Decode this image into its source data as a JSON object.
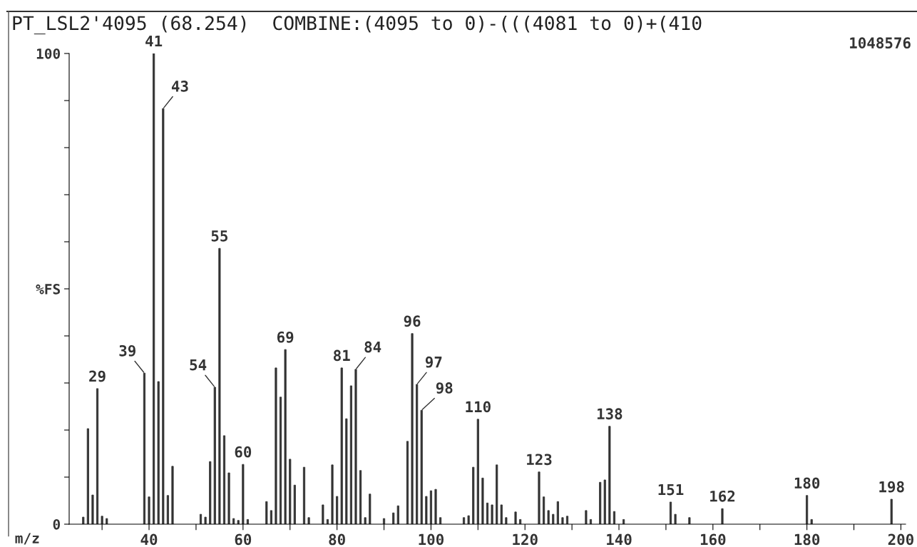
{
  "chart_data": {
    "type": "bar",
    "title": "PT_LSL2'4095 (68.254)  COMBINE:(4095 to 0)-(((4081 to 0)+(410",
    "xlabel": "m/z",
    "x": [
      26,
      27,
      28,
      29,
      30,
      31,
      39,
      40,
      41,
      42,
      43,
      44,
      45,
      51,
      52,
      53,
      54,
      55,
      56,
      57,
      58,
      59,
      60,
      61,
      65,
      66,
      67,
      68,
      69,
      70,
      71,
      73,
      74,
      77,
      78,
      79,
      80,
      81,
      82,
      83,
      84,
      85,
      86,
      87,
      90,
      92,
      93,
      95,
      96,
      97,
      98,
      99,
      100,
      101,
      102,
      107,
      108,
      109,
      110,
      111,
      112,
      113,
      114,
      115,
      116,
      118,
      119,
      123,
      124,
      125,
      126,
      127,
      128,
      129,
      133,
      134,
      136,
      137,
      138,
      139,
      141,
      151,
      152,
      155,
      162,
      180,
      181,
      198
    ],
    "values": [
      1.5,
      20.3,
      6.2,
      28.8,
      1.7,
      1.2,
      32.1,
      5.8,
      100,
      30.3,
      88.3,
      6.1,
      12.3,
      2.1,
      1.5,
      13.3,
      29.1,
      58.6,
      18.8,
      10.9,
      1.2,
      0.8,
      12.7,
      1,
      4.8,
      2.9,
      33.2,
      27.0,
      37.1,
      13.8,
      8.3,
      12.1,
      1.4,
      4.1,
      1,
      12.6,
      5.9,
      33.2,
      22.4,
      29.4,
      32.9,
      11.4,
      1.4,
      6.4,
      1.2,
      2.4,
      3.9,
      17.6,
      40.5,
      29.7,
      24.2,
      5.9,
      7.1,
      7.4,
      1.4,
      1.4,
      1.8,
      12.1,
      22.3,
      9.8,
      4.5,
      4.1,
      12.6,
      4.1,
      1.4,
      2.6,
      1,
      11.1,
      5.8,
      2.9,
      2.1,
      4.8,
      1.4,
      1.7,
      2.9,
      1,
      8.9,
      9.4,
      20.8,
      2.7,
      1,
      4.7,
      2.1,
      1.4,
      3.3,
      6.1,
      1,
      5.3
    ],
    "color": "#333333",
    "xlim": [
      23,
      201
    ],
    "ylim": [
      0,
      100
    ],
    "xticks": [
      {
        "value": 30,
        "label": null
      },
      40,
      {
        "value": 50,
        "label": null
      },
      60,
      {
        "value": 70,
        "label": null
      },
      80,
      {
        "value": 90,
        "label": null
      },
      100,
      {
        "value": 110,
        "label": null
      },
      120,
      {
        "value": 130,
        "label": null
      },
      140,
      {
        "value": 150,
        "label": null
      },
      160,
      {
        "value": 170,
        "label": null
      },
      180,
      {
        "value": 190,
        "label": null
      },
      200
    ],
    "yticks": [
      0,
      {
        "value": 10,
        "label": null
      },
      {
        "value": 20,
        "label": null
      },
      {
        "value": 30,
        "label": null
      },
      {
        "value": 40,
        "label": null
      },
      {
        "value": 50,
        "label": "%FS"
      },
      {
        "value": 60,
        "label": null
      },
      {
        "value": 70,
        "label": null
      },
      {
        "value": 80,
        "label": null
      },
      {
        "value": 90,
        "label": null
      },
      100
    ],
    "grid": false,
    "annotations": [
      "1048576",
      {
        "text": "29",
        "x": 29,
        "y": 28.8
      },
      {
        "text": "39",
        "x": 39,
        "y": 32.1
      },
      {
        "text": "41",
        "x": 41,
        "y": 100
      },
      {
        "text": "43",
        "x": 43,
        "y": 88.3
      },
      {
        "text": "54",
        "x": 54,
        "y": 29.1
      },
      {
        "text": "55",
        "x": 55,
        "y": 58.6
      },
      {
        "text": "60",
        "x": 60,
        "y": 12.7
      },
      {
        "text": "69",
        "x": 69,
        "y": 37.1
      },
      {
        "text": "81",
        "x": 81,
        "y": 33.2
      },
      {
        "text": "84",
        "x": 84,
        "y": 32.9
      },
      {
        "text": "96",
        "x": 96,
        "y": 40.5
      },
      {
        "text": "97",
        "x": 97,
        "y": 29.7
      },
      {
        "text": "98",
        "x": 98,
        "y": 24.2
      },
      {
        "text": "110",
        "x": 110,
        "y": 22.3
      },
      {
        "text": "123",
        "x": 123,
        "y": 11.1
      },
      {
        "text": "138",
        "x": 138,
        "y": 20.8
      },
      {
        "text": "151",
        "x": 151,
        "y": 4.7
      },
      {
        "text": "162",
        "x": 162,
        "y": 3.3
      },
      {
        "text": "180",
        "x": 180,
        "y": 6.1
      },
      {
        "text": "198",
        "x": 198,
        "y": 5.3
      }
    ]
  }
}
